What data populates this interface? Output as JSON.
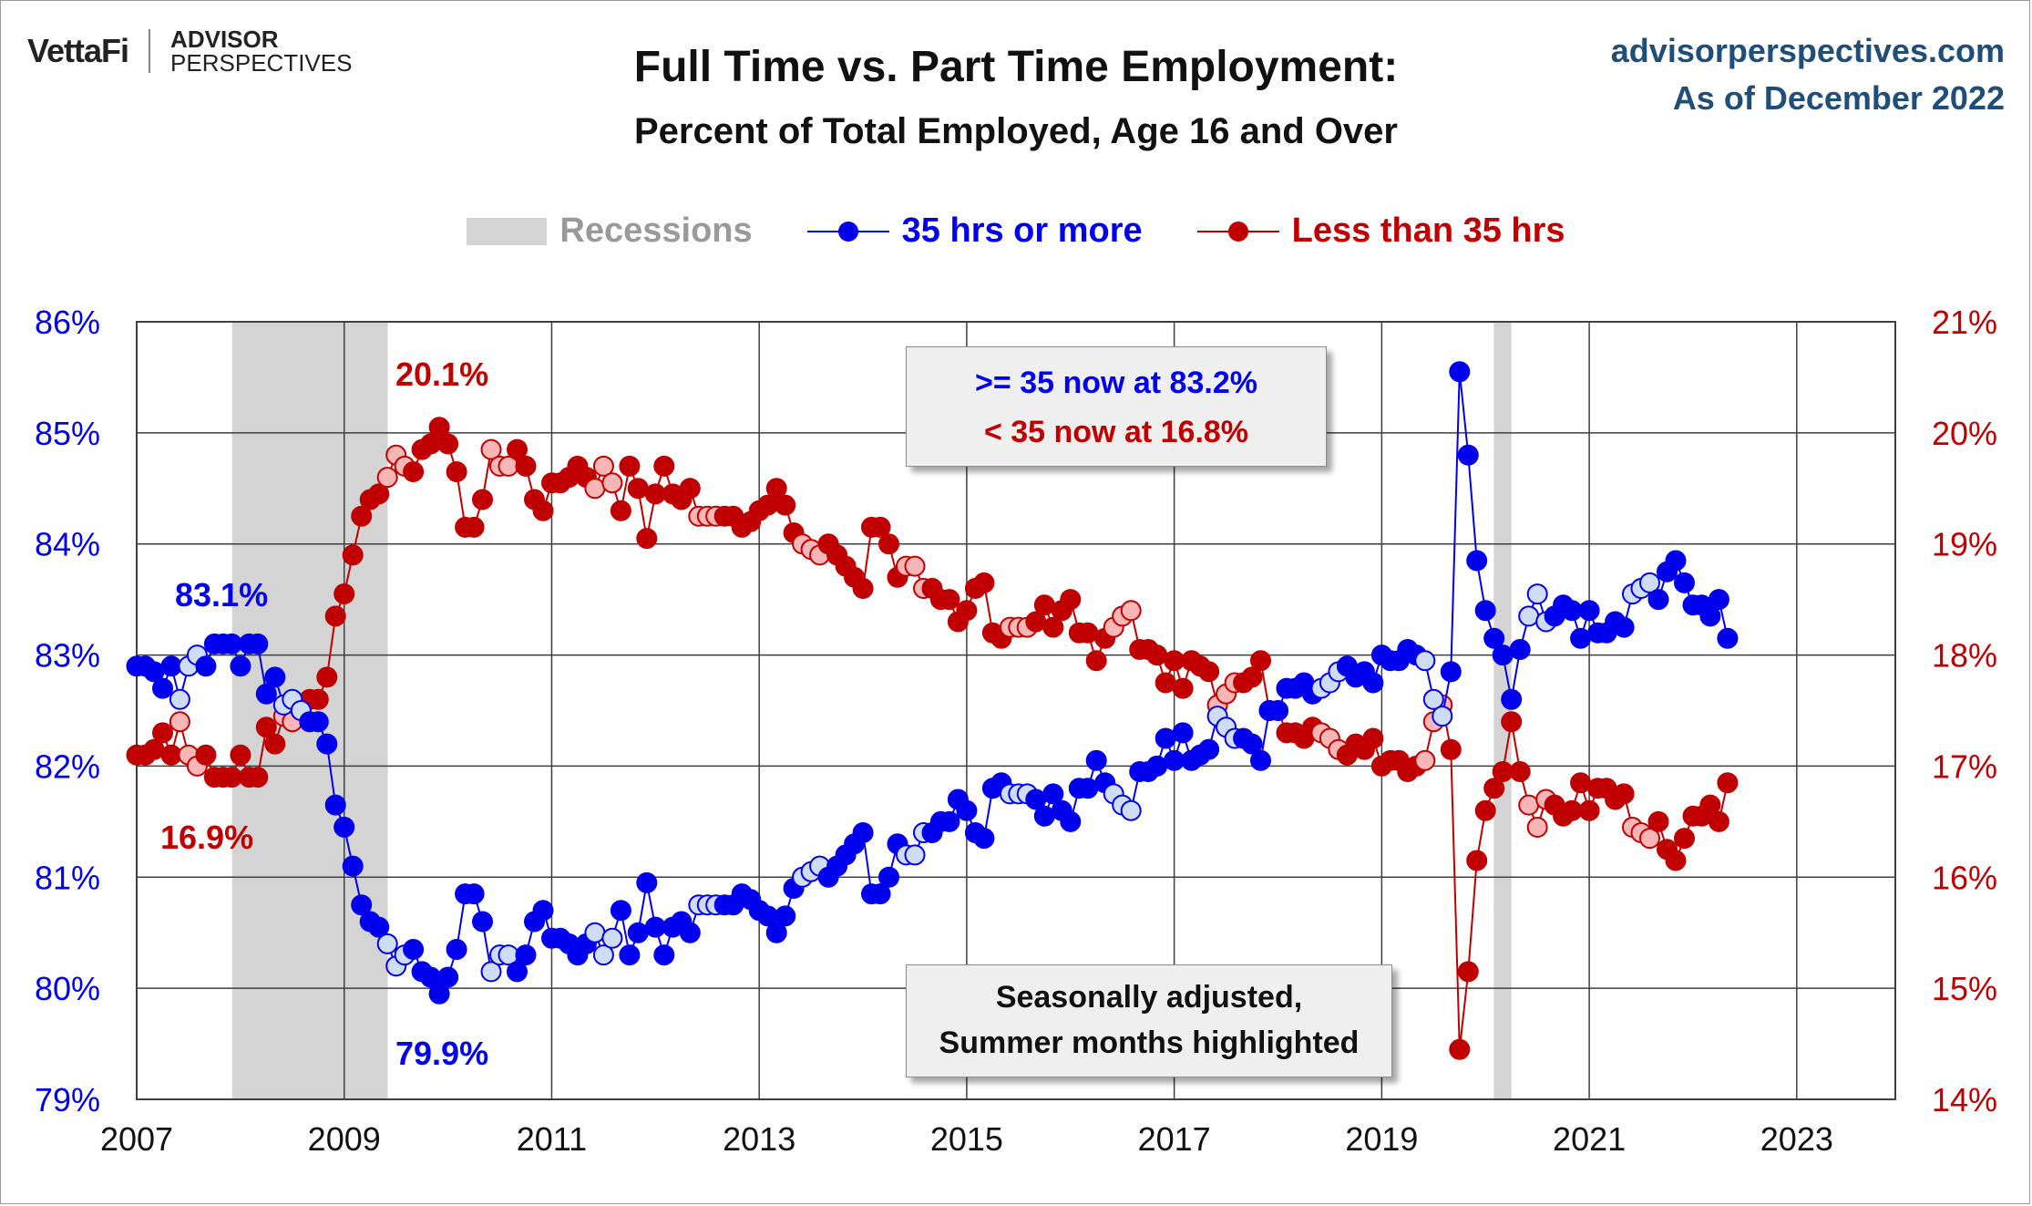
{
  "header": {
    "logo_primary": "VettaFi",
    "logo_secondary_top": "ADVISOR",
    "logo_secondary_bottom": "PERSPECTIVES",
    "source_line1": "advisorperspectives.com",
    "source_line2": "As of December 2022"
  },
  "legend": {
    "recessions": "Recessions",
    "full_time": "35 hrs or more",
    "part_time": "Less than 35 hrs"
  },
  "boxes": {
    "now_full": ">= 35 now at 83.2%",
    "now_part": "< 35 now at 16.8%",
    "note_line1": "Seasonally adjusted,",
    "note_line2": "Summer months highlighted"
  },
  "annotations": {
    "start_full": "83.1%",
    "low_full": "79.9%",
    "start_part": "16.9%",
    "high_part": "20.1%"
  },
  "colors": {
    "full_time": "#0000ee",
    "full_time_summer": "#cfdcf5",
    "part_time": "#c00000",
    "part_time_summer": "#f9b6b6",
    "recession": "#d4d4d4",
    "grid": "#3f3f3f",
    "left_axis": "#0000ee",
    "right_axis": "#c00000"
  },
  "chart_data": {
    "type": "line",
    "title": "Full Time vs. Part Time Employment:",
    "subtitle": "Percent of Total Employed, Age 16 and Over",
    "x_ticks": [
      "2007",
      "2009",
      "2011",
      "2013",
      "2015",
      "2017",
      "2019",
      "2021",
      "2023"
    ],
    "xlim": [
      2007,
      2023.95
    ],
    "y_left": {
      "ticks": [
        "79%",
        "80%",
        "81%",
        "82%",
        "83%",
        "84%",
        "85%",
        "86%"
      ],
      "lim": [
        79,
        86
      ]
    },
    "y_right": {
      "ticks": [
        "14%",
        "15%",
        "16%",
        "17%",
        "18%",
        "19%",
        "20%",
        "21%"
      ],
      "lim": [
        14,
        21
      ]
    },
    "recessions": [
      [
        2007.92,
        2009.42
      ],
      [
        2020.08,
        2020.25
      ]
    ],
    "grid": true,
    "legend_position": "top-center",
    "summer_months_highlighted": true,
    "series": [
      {
        "name": "35 hrs or more",
        "axis": "left",
        "start": "2007-01",
        "values": [
          82.9,
          82.9,
          82.85,
          82.7,
          82.9,
          82.6,
          82.9,
          83.0,
          82.9,
          83.1,
          83.1,
          83.1,
          82.9,
          83.1,
          83.1,
          82.65,
          82.8,
          82.55,
          82.6,
          82.5,
          82.4,
          82.4,
          82.2,
          81.65,
          81.45,
          81.1,
          80.75,
          80.6,
          80.55,
          80.4,
          80.2,
          80.3,
          80.35,
          80.15,
          80.1,
          79.95,
          80.1,
          80.35,
          80.85,
          80.85,
          80.6,
          80.15,
          80.3,
          80.3,
          80.15,
          80.3,
          80.6,
          80.7,
          80.45,
          80.45,
          80.4,
          80.3,
          80.4,
          80.5,
          80.3,
          80.45,
          80.7,
          80.3,
          80.5,
          80.95,
          80.55,
          80.3,
          80.55,
          80.6,
          80.5,
          80.75,
          80.75,
          80.75,
          80.75,
          80.75,
          80.85,
          80.8,
          80.7,
          80.65,
          80.5,
          80.65,
          80.9,
          81.0,
          81.05,
          81.1,
          81.0,
          81.1,
          81.2,
          81.3,
          81.4,
          80.85,
          80.85,
          81.0,
          81.3,
          81.2,
          81.2,
          81.4,
          81.4,
          81.5,
          81.5,
          81.7,
          81.6,
          81.4,
          81.35,
          81.8,
          81.85,
          81.75,
          81.75,
          81.75,
          81.7,
          81.55,
          81.75,
          81.6,
          81.5,
          81.8,
          81.8,
          82.05,
          81.85,
          81.75,
          81.65,
          81.6,
          81.95,
          81.95,
          82.0,
          82.25,
          82.05,
          82.3,
          82.05,
          82.1,
          82.15,
          82.45,
          82.35,
          82.25,
          82.25,
          82.2,
          82.05,
          82.5,
          82.5,
          82.7,
          82.7,
          82.75,
          82.65,
          82.7,
          82.75,
          82.85,
          82.9,
          82.8,
          82.85,
          82.75,
          83.0,
          82.95,
          82.95,
          83.05,
          83.0,
          82.95,
          82.6,
          82.45,
          82.85,
          85.55,
          84.8,
          83.85,
          83.4,
          83.15,
          83.0,
          82.6,
          83.05,
          83.35,
          83.55,
          83.3,
          83.35,
          83.45,
          83.4,
          83.15,
          83.4,
          83.2,
          83.2,
          83.3,
          83.25,
          83.55,
          83.6,
          83.65,
          83.5,
          83.75,
          83.85,
          83.65,
          83.45,
          83.45,
          83.35,
          83.5,
          83.15
        ]
      },
      {
        "name": "Less than 35 hrs",
        "axis": "right",
        "start": "2007-01",
        "values": [
          17.1,
          17.1,
          17.15,
          17.3,
          17.1,
          17.4,
          17.1,
          17.0,
          17.1,
          16.9,
          16.9,
          16.9,
          17.1,
          16.9,
          16.9,
          17.35,
          17.2,
          17.45,
          17.4,
          17.5,
          17.6,
          17.6,
          17.8,
          18.35,
          18.55,
          18.9,
          19.25,
          19.4,
          19.45,
          19.6,
          19.8,
          19.7,
          19.65,
          19.85,
          19.9,
          20.05,
          19.9,
          19.65,
          19.15,
          19.15,
          19.4,
          19.85,
          19.7,
          19.7,
          19.85,
          19.7,
          19.4,
          19.3,
          19.55,
          19.55,
          19.6,
          19.7,
          19.6,
          19.5,
          19.7,
          19.55,
          19.3,
          19.7,
          19.5,
          19.05,
          19.45,
          19.7,
          19.45,
          19.4,
          19.5,
          19.25,
          19.25,
          19.25,
          19.25,
          19.25,
          19.15,
          19.2,
          19.3,
          19.35,
          19.5,
          19.35,
          19.1,
          19.0,
          18.95,
          18.9,
          19.0,
          18.9,
          18.8,
          18.7,
          18.6,
          19.15,
          19.15,
          19.0,
          18.7,
          18.8,
          18.8,
          18.6,
          18.6,
          18.5,
          18.5,
          18.3,
          18.4,
          18.6,
          18.65,
          18.2,
          18.15,
          18.25,
          18.25,
          18.25,
          18.3,
          18.45,
          18.25,
          18.4,
          18.5,
          18.2,
          18.2,
          17.95,
          18.15,
          18.25,
          18.35,
          18.4,
          18.05,
          18.05,
          18.0,
          17.75,
          17.95,
          17.7,
          17.95,
          17.9,
          17.85,
          17.55,
          17.65,
          17.75,
          17.75,
          17.8,
          17.95,
          17.5,
          17.5,
          17.3,
          17.3,
          17.25,
          17.35,
          17.3,
          17.25,
          17.15,
          17.1,
          17.2,
          17.15,
          17.25,
          17.0,
          17.05,
          17.05,
          16.95,
          17.0,
          17.05,
          17.4,
          17.55,
          17.15,
          14.45,
          15.15,
          16.15,
          16.6,
          16.8,
          16.95,
          17.4,
          16.95,
          16.65,
          16.45,
          16.7,
          16.65,
          16.55,
          16.6,
          16.85,
          16.6,
          16.8,
          16.8,
          16.7,
          16.75,
          16.45,
          16.4,
          16.35,
          16.5,
          16.25,
          16.15,
          16.35,
          16.55,
          16.55,
          16.65,
          16.5,
          16.85
        ]
      }
    ]
  }
}
